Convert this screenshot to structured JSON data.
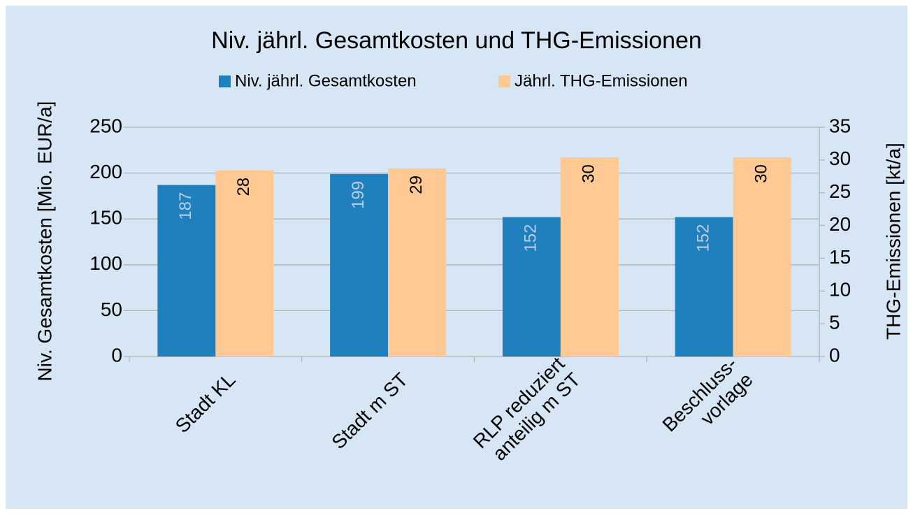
{
  "chart_data": {
    "type": "bar",
    "title": "Niv. jährl. Gesamtkosten und THG-Emissionen",
    "ylabel": "Niv. Gesamtkosten [Mio. EUR/a]",
    "y2label": "THG-Emissionen [kt/a]",
    "categories": [
      "Stadt KL",
      "Stadt m ST",
      "RLP reduziert\nanteilig m ST",
      "Beschluss-\nvorlage"
    ],
    "series": [
      {
        "name": "Niv. jährl. Gesamtkosten",
        "color": "#1f80bd",
        "values": [
          187,
          199,
          152,
          152
        ]
      },
      {
        "name": "Jährl. THG-Emissionen",
        "color": "#ffc993",
        "axis": "y2",
        "values": [
          28.4,
          28.7,
          30.4,
          30.4
        ],
        "value_labels": [
          "28",
          "29",
          "30",
          "30"
        ]
      }
    ],
    "ylim": [
      0,
      250
    ],
    "yticks": [
      0,
      50,
      100,
      150,
      200,
      250
    ],
    "y2lim": [
      0,
      35
    ],
    "y2ticks": [
      0,
      5,
      10,
      15,
      20,
      25,
      30,
      35
    ],
    "grid": true,
    "legend": "top"
  }
}
